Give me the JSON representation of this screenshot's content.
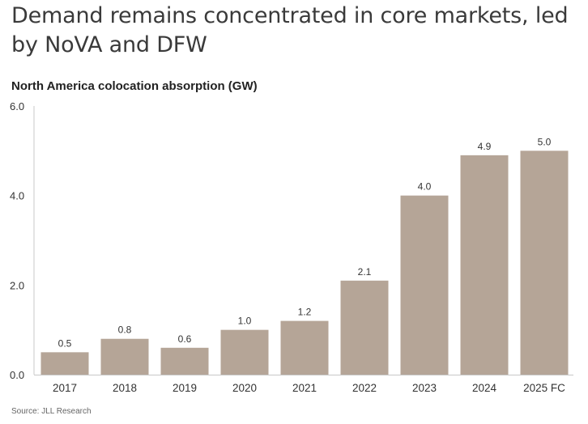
{
  "headline": "Demand remains concentrated in core markets, led by NoVA and DFW",
  "footer": {
    "source": "Source: JLL Research"
  },
  "colors": {
    "bar": "#b5a597",
    "axis": "#c8c8c8",
    "text": "#333333"
  },
  "chart_data": {
    "type": "bar",
    "title": "North America colocation absorption (GW)",
    "xlabel": "",
    "ylabel": "",
    "categories": [
      "2017",
      "2018",
      "2019",
      "2020",
      "2021",
      "2022",
      "2023",
      "2024",
      "2025 FC"
    ],
    "values": [
      0.5,
      0.8,
      0.6,
      1.0,
      1.2,
      2.1,
      4.0,
      4.9,
      5.0
    ],
    "value_labels": [
      "0.5",
      "0.8",
      "0.6",
      "1.0",
      "1.2",
      "2.1",
      "4.0",
      "4.9",
      "5.0"
    ],
    "ylim": [
      0,
      6
    ],
    "yticks": [
      0,
      2,
      4,
      6
    ],
    "ytick_labels": [
      "0.0",
      "2.0",
      "4.0",
      "6.0"
    ],
    "grid": false,
    "legend": "none"
  }
}
